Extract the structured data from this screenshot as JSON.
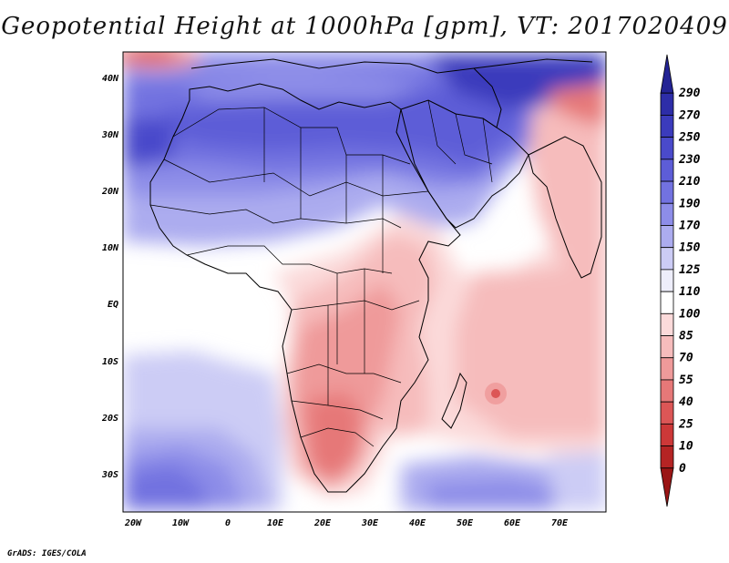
{
  "title": "Geopotential Height at 1000hPa [gpm], VT: 2017020409",
  "credit": "GrADS: IGES/COLA",
  "map": {
    "region": "Africa and Arabian Peninsula",
    "lon_range": [
      -22,
      80
    ],
    "lat_range": [
      -37,
      45
    ],
    "lat_ticks": [
      "40N",
      "30N",
      "20N",
      "10N",
      "EQ",
      "10S",
      "20S",
      "30S"
    ],
    "lon_ticks": [
      "20W",
      "10W",
      "0",
      "10E",
      "20E",
      "30E",
      "40E",
      "50E",
      "60E",
      "70E"
    ]
  },
  "colorbar": {
    "labels": [
      "290",
      "270",
      "250",
      "230",
      "210",
      "190",
      "170",
      "150",
      "125",
      "110",
      "100",
      "85",
      "70",
      "55",
      "40",
      "25",
      "10",
      "0"
    ],
    "colors": [
      "#232394",
      "#2d2da8",
      "#3b3bbc",
      "#4a4acb",
      "#5d5dd7",
      "#7272e0",
      "#8d8de8",
      "#acacef",
      "#ccccf5",
      "#eeeefb",
      "#ffffff",
      "#fbdada",
      "#f6bcbc",
      "#ef9a9a",
      "#e67878",
      "#dc5656",
      "#cd3838",
      "#b52424",
      "#9a1515"
    ]
  }
}
